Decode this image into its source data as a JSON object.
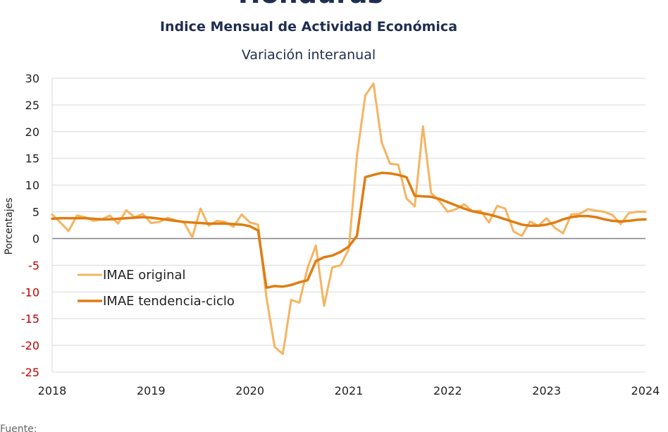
{
  "header": {
    "title": "Honduras",
    "subtitle": "Indice Mensual de  Actividad Económica",
    "description": "Variación interanual"
  },
  "footer": {
    "source_label": "Fuente:"
  },
  "chart_data": {
    "type": "line",
    "ylabel": "Porcentajes",
    "ylim": [
      -25,
      30
    ],
    "yticks": [
      30,
      25,
      20,
      15,
      10,
      5,
      0,
      -5,
      -10,
      -15,
      -20,
      -25
    ],
    "xticks": [
      "2018",
      "2019",
      "2020",
      "2021",
      "2022",
      "2023",
      "2024"
    ],
    "xlim": [
      2018,
      2024
    ],
    "grid": true,
    "legend_position": "lower-left",
    "colors": {
      "negative_tick": "#c00000",
      "positive_tick": "#222222",
      "grid": "#d9d9d9",
      "zero_line": "#808080"
    },
    "series": [
      {
        "name": "IMAE original",
        "color": "#f5b461",
        "x": [
          2018.0,
          2018.083,
          2018.167,
          2018.25,
          2018.333,
          2018.417,
          2018.5,
          2018.583,
          2018.667,
          2018.75,
          2018.833,
          2018.917,
          2019.0,
          2019.083,
          2019.167,
          2019.25,
          2019.333,
          2019.417,
          2019.5,
          2019.583,
          2019.667,
          2019.75,
          2019.833,
          2019.917,
          2020.0,
          2020.083,
          2020.167,
          2020.25,
          2020.333,
          2020.417,
          2020.5,
          2020.583,
          2020.667,
          2020.75,
          2020.833,
          2020.917,
          2021.0,
          2021.083,
          2021.167,
          2021.25,
          2021.333,
          2021.417,
          2021.5,
          2021.583,
          2021.667,
          2021.75,
          2021.833,
          2021.917,
          2022.0,
          2022.083,
          2022.167,
          2022.25,
          2022.333,
          2022.417,
          2022.5,
          2022.583,
          2022.667,
          2022.75,
          2022.833,
          2022.917,
          2023.0,
          2023.083,
          2023.167,
          2023.25,
          2023.333,
          2023.417,
          2023.5,
          2023.583,
          2023.667,
          2023.75,
          2023.833,
          2023.917,
          2024.0
        ],
        "y": [
          4.5,
          3.0,
          1.4,
          4.3,
          4.0,
          3.3,
          3.6,
          4.3,
          2.8,
          5.3,
          4.0,
          4.6,
          2.9,
          3.1,
          3.9,
          3.4,
          3.0,
          0.2,
          5.6,
          2.4,
          3.3,
          3.1,
          2.2,
          4.5,
          3.0,
          2.6,
          -11.0,
          -20.3,
          -21.6,
          -11.5,
          -12.0,
          -5.5,
          -1.3,
          -12.6,
          -5.4,
          -5.0,
          -2.0,
          15.5,
          26.8,
          29.0,
          18.0,
          14.0,
          13.8,
          7.5,
          6.0,
          21.0,
          8.5,
          7.0,
          5.0,
          5.5,
          6.4,
          5.1,
          5.2,
          3.0,
          6.1,
          5.6,
          1.3,
          0.5,
          3.2,
          2.4,
          3.8,
          2.0,
          1.0,
          4.5,
          4.6,
          5.5,
          5.2,
          5.0,
          4.4,
          2.7,
          4.8,
          5.0,
          5.0
        ]
      },
      {
        "name": "IMAE tendencia-ciclo",
        "color": "#e07c10",
        "x": [
          2018.0,
          2018.083,
          2018.167,
          2018.25,
          2018.333,
          2018.417,
          2018.5,
          2018.583,
          2018.667,
          2018.75,
          2018.833,
          2018.917,
          2019.0,
          2019.083,
          2019.167,
          2019.25,
          2019.333,
          2019.417,
          2019.5,
          2019.583,
          2019.667,
          2019.75,
          2019.833,
          2019.917,
          2020.0,
          2020.083,
          2020.167,
          2020.25,
          2020.333,
          2020.417,
          2020.5,
          2020.583,
          2020.667,
          2020.75,
          2020.833,
          2020.917,
          2021.0,
          2021.083,
          2021.167,
          2021.25,
          2021.333,
          2021.417,
          2021.5,
          2021.583,
          2021.667,
          2021.75,
          2021.833,
          2021.917,
          2022.0,
          2022.083,
          2022.167,
          2022.25,
          2022.333,
          2022.417,
          2022.5,
          2022.583,
          2022.667,
          2022.75,
          2022.833,
          2022.917,
          2023.0,
          2023.083,
          2023.167,
          2023.25,
          2023.333,
          2023.417,
          2023.5,
          2023.583,
          2023.667,
          2023.75,
          2023.833,
          2023.917,
          2024.0
        ],
        "y": [
          3.7,
          3.8,
          3.8,
          3.8,
          3.8,
          3.7,
          3.6,
          3.6,
          3.7,
          3.8,
          3.9,
          4.0,
          3.9,
          3.7,
          3.5,
          3.3,
          3.1,
          3.0,
          2.9,
          2.8,
          2.8,
          2.8,
          2.7,
          2.6,
          2.3,
          1.5,
          -9.2,
          -8.9,
          -9.0,
          -8.7,
          -8.2,
          -7.8,
          -4.2,
          -3.5,
          -3.2,
          -2.5,
          -1.5,
          0.5,
          11.5,
          11.9,
          12.3,
          12.2,
          11.9,
          11.5,
          8.0,
          7.9,
          7.8,
          7.4,
          6.8,
          6.2,
          5.6,
          5.1,
          4.8,
          4.5,
          4.1,
          3.6,
          3.1,
          2.6,
          2.4,
          2.4,
          2.6,
          3.0,
          3.6,
          4.0,
          4.2,
          4.2,
          4.0,
          3.6,
          3.3,
          3.2,
          3.3,
          3.5,
          3.6
        ]
      }
    ]
  }
}
